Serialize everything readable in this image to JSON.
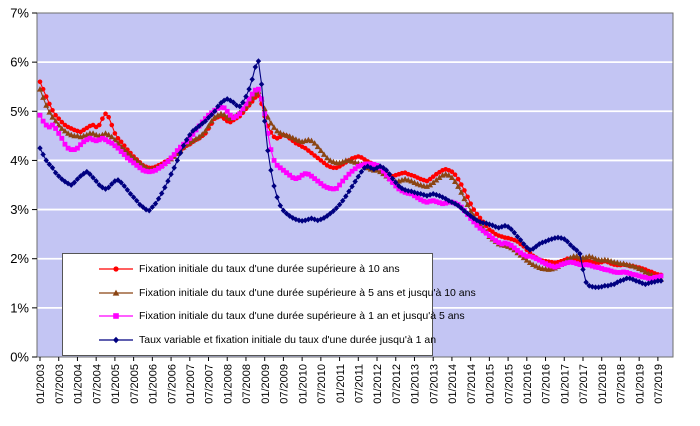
{
  "page": {
    "background": "#FFFFFF"
  },
  "chart_data": {
    "type": "line",
    "title": "",
    "xlabel": "",
    "ylabel": "",
    "ylim": [
      0,
      7
    ],
    "y_tick_labels": [
      "0%",
      "1%",
      "2%",
      "3%",
      "4%",
      "5%",
      "6%",
      "7%"
    ],
    "y_gridlines": [
      1,
      2,
      3,
      4,
      5,
      6
    ],
    "grid": "horizontal",
    "gridline_color": "#FFFFFF",
    "plot_bg": "#C3C5F3",
    "border_color": "#6E6E6E",
    "axis_text_color": "#000000",
    "legend_position": "bottom-left-overlay",
    "x_frequency": "monthly",
    "x_start_label": "01/2003",
    "x_tick_labels": [
      "01/2003",
      "07/2003",
      "01/2004",
      "07/2004",
      "01/2005",
      "07/2005",
      "01/2006",
      "07/2006",
      "01/2007",
      "07/2007",
      "01/2008",
      "07/2008",
      "01/2009",
      "07/2009",
      "01/2010",
      "07/2010",
      "01/2011",
      "07/2011",
      "01/2012",
      "07/2012",
      "01/2013",
      "07/2013",
      "01/2014",
      "07/2014",
      "01/2015",
      "07/2015",
      "01/2016",
      "07/2016",
      "01/2017",
      "07/2017",
      "01/2018",
      "07/2018",
      "01/2019",
      "07/2019"
    ],
    "series": [
      {
        "label": "Fixation initiale du taux d'une durée supérieure à 10 ans",
        "color": "#FF0000",
        "marker": "circle",
        "values": [
          5.6,
          5.45,
          5.3,
          5.15,
          5.02,
          4.92,
          4.85,
          4.78,
          4.72,
          4.68,
          4.65,
          4.62,
          4.6,
          4.58,
          4.62,
          4.66,
          4.7,
          4.72,
          4.68,
          4.72,
          4.85,
          4.95,
          4.88,
          4.72,
          4.55,
          4.45,
          4.38,
          4.3,
          4.22,
          4.15,
          4.08,
          4.02,
          3.96,
          3.9,
          3.87,
          3.85,
          3.85,
          3.87,
          3.9,
          3.93,
          3.97,
          4.0,
          4.05,
          4.1,
          4.15,
          4.2,
          4.25,
          4.3,
          4.33,
          4.38,
          4.42,
          4.45,
          4.5,
          4.55,
          4.65,
          4.75,
          4.85,
          4.88,
          4.9,
          4.85,
          4.8,
          4.78,
          4.82,
          4.86,
          4.9,
          4.97,
          5.05,
          5.12,
          5.2,
          5.28,
          5.32,
          5.15,
          4.9,
          4.7,
          4.57,
          4.48,
          4.45,
          4.48,
          4.52,
          4.5,
          4.45,
          4.4,
          4.35,
          4.32,
          4.28,
          4.25,
          4.2,
          4.15,
          4.1,
          4.05,
          4.0,
          3.95,
          3.9,
          3.87,
          3.85,
          3.85,
          3.88,
          3.92,
          3.96,
          4.0,
          4.04,
          4.06,
          4.08,
          4.06,
          4.02,
          3.98,
          3.95,
          3.92,
          3.9,
          3.85,
          3.8,
          3.75,
          3.71,
          3.68,
          3.7,
          3.72,
          3.74,
          3.75,
          3.72,
          3.7,
          3.68,
          3.65,
          3.62,
          3.6,
          3.58,
          3.62,
          3.67,
          3.72,
          3.76,
          3.8,
          3.82,
          3.8,
          3.77,
          3.71,
          3.62,
          3.51,
          3.39,
          3.26,
          3.12,
          3.0,
          2.91,
          2.83,
          2.75,
          2.67,
          2.59,
          2.55,
          2.5,
          2.47,
          2.45,
          2.43,
          2.42,
          2.4,
          2.38,
          2.35,
          2.3,
          2.25,
          2.18,
          2.12,
          2.06,
          2.02,
          1.98,
          1.96,
          1.95,
          1.94,
          1.93,
          1.92,
          1.93,
          1.95,
          1.97,
          2.0,
          2.0,
          1.98,
          1.97,
          1.95,
          1.95,
          1.97,
          1.95,
          1.93,
          1.92,
          1.92,
          1.93,
          1.95,
          1.93,
          1.9,
          1.88,
          1.87,
          1.87,
          1.88,
          1.87,
          1.85,
          1.85,
          1.83,
          1.82,
          1.8,
          1.78,
          1.75,
          1.73,
          1.7,
          1.68,
          1.67
        ]
      },
      {
        "label": "Fixation initiale du taux d'une durée supérieure à 5 ans et  jusqu'à 10 ans",
        "color": "#8B4513",
        "marker": "triangle",
        "values": [
          5.45,
          5.28,
          5.12,
          4.98,
          4.88,
          4.8,
          4.72,
          4.65,
          4.6,
          4.55,
          4.52,
          4.5,
          4.5,
          4.48,
          4.5,
          4.52,
          4.55,
          4.55,
          4.52,
          4.5,
          4.52,
          4.55,
          4.52,
          4.48,
          4.42,
          4.35,
          4.28,
          4.22,
          4.15,
          4.1,
          4.05,
          4.0,
          3.95,
          3.9,
          3.85,
          3.82,
          3.82,
          3.84,
          3.87,
          3.9,
          3.94,
          3.98,
          4.03,
          4.08,
          4.14,
          4.2,
          4.27,
          4.33,
          4.36,
          4.4,
          4.44,
          4.48,
          4.53,
          4.6,
          4.7,
          4.8,
          4.88,
          4.92,
          4.95,
          4.93,
          4.88,
          4.85,
          4.88,
          4.92,
          4.97,
          5.03,
          5.1,
          5.18,
          5.27,
          5.35,
          5.4,
          5.25,
          5.05,
          4.88,
          4.76,
          4.67,
          4.6,
          4.56,
          4.53,
          4.51,
          4.49,
          4.46,
          4.43,
          4.4,
          4.38,
          4.4,
          4.42,
          4.4,
          4.35,
          4.28,
          4.2,
          4.12,
          4.05,
          4.0,
          3.97,
          3.95,
          3.95,
          3.97,
          4.0,
          4.0,
          3.98,
          3.96,
          3.94,
          3.92,
          3.88,
          3.85,
          3.82,
          3.8,
          3.8,
          3.77,
          3.73,
          3.68,
          3.63,
          3.58,
          3.57,
          3.58,
          3.6,
          3.62,
          3.6,
          3.58,
          3.55,
          3.52,
          3.5,
          3.48,
          3.47,
          3.5,
          3.55,
          3.6,
          3.65,
          3.7,
          3.72,
          3.7,
          3.65,
          3.57,
          3.47,
          3.35,
          3.22,
          3.1,
          2.97,
          2.87,
          2.78,
          2.7,
          2.62,
          2.55,
          2.45,
          2.4,
          2.35,
          2.3,
          2.28,
          2.27,
          2.25,
          2.22,
          2.18,
          2.12,
          2.07,
          2.02,
          1.97,
          1.92,
          1.88,
          1.85,
          1.82,
          1.8,
          1.79,
          1.78,
          1.79,
          1.81,
          1.84,
          1.88,
          1.92,
          1.97,
          2.02,
          2.05,
          2.05,
          2.03,
          2.02,
          2.03,
          2.05,
          2.03,
          2.0,
          1.98,
          1.97,
          1.98,
          1.97,
          1.95,
          1.93,
          1.92,
          1.9,
          1.9,
          1.88,
          1.87,
          1.85,
          1.83,
          1.8,
          1.77,
          1.73,
          1.7,
          1.67,
          1.63,
          1.6,
          1.58
        ]
      },
      {
        "label": "Fixation initiale du taux d'une durée supérieure à 1 an et  jusqu'à 5 ans",
        "color": "#FF00FF",
        "marker": "square",
        "values": [
          4.92,
          4.8,
          4.72,
          4.68,
          4.72,
          4.65,
          4.55,
          4.45,
          4.33,
          4.25,
          4.22,
          4.22,
          4.25,
          4.32,
          4.38,
          4.42,
          4.45,
          4.42,
          4.4,
          4.42,
          4.45,
          4.42,
          4.38,
          4.35,
          4.3,
          4.25,
          4.18,
          4.12,
          4.05,
          4.0,
          3.95,
          3.9,
          3.85,
          3.8,
          3.78,
          3.77,
          3.78,
          3.8,
          3.84,
          3.88,
          3.93,
          3.98,
          4.05,
          4.12,
          4.2,
          4.27,
          4.33,
          4.38,
          4.45,
          4.53,
          4.62,
          4.7,
          4.78,
          4.85,
          4.92,
          4.97,
          5.02,
          5.06,
          5.08,
          5.07,
          5.0,
          4.92,
          4.87,
          4.9,
          4.95,
          5.05,
          5.15,
          5.25,
          5.35,
          5.43,
          5.45,
          5.25,
          4.95,
          4.55,
          4.22,
          4.0,
          3.9,
          3.85,
          3.8,
          3.75,
          3.7,
          3.65,
          3.63,
          3.65,
          3.7,
          3.73,
          3.72,
          3.68,
          3.63,
          3.58,
          3.53,
          3.48,
          3.45,
          3.43,
          3.42,
          3.43,
          3.5,
          3.58,
          3.65,
          3.72,
          3.78,
          3.83,
          3.88,
          3.9,
          3.92,
          3.93,
          3.93,
          3.92,
          3.9,
          3.85,
          3.78,
          3.7,
          3.62,
          3.55,
          3.48,
          3.42,
          3.38,
          3.35,
          3.33,
          3.32,
          3.28,
          3.24,
          3.2,
          3.17,
          3.15,
          3.17,
          3.18,
          3.16,
          3.14,
          3.12,
          3.13,
          3.15,
          3.15,
          3.13,
          3.1,
          3.05,
          2.98,
          2.9,
          2.82,
          2.75,
          2.68,
          2.62,
          2.57,
          2.52,
          2.47,
          2.42,
          2.37,
          2.33,
          2.3,
          2.32,
          2.3,
          2.27,
          2.22,
          2.17,
          2.12,
          2.08,
          2.05,
          2.05,
          2.03,
          2.0,
          1.97,
          1.93,
          1.9,
          1.87,
          1.85,
          1.83,
          1.85,
          1.88,
          1.9,
          1.92,
          1.93,
          1.92,
          1.9,
          1.88,
          1.87,
          1.88,
          1.87,
          1.85,
          1.83,
          1.82,
          1.8,
          1.78,
          1.77,
          1.75,
          1.73,
          1.72,
          1.72,
          1.73,
          1.72,
          1.7,
          1.68,
          1.67,
          1.65,
          1.63,
          1.62,
          1.6,
          1.6,
          1.62,
          1.63,
          1.65
        ]
      },
      {
        "label": "Taux variable et fixation initiale du taux d'une durée jusqu'à 1 an",
        "color": "#000080",
        "marker": "diamond",
        "values": [
          4.25,
          4.12,
          4.0,
          3.92,
          3.85,
          3.75,
          3.68,
          3.62,
          3.57,
          3.53,
          3.5,
          3.55,
          3.62,
          3.68,
          3.73,
          3.77,
          3.72,
          3.65,
          3.58,
          3.5,
          3.45,
          3.42,
          3.45,
          3.52,
          3.58,
          3.6,
          3.55,
          3.48,
          3.4,
          3.32,
          3.25,
          3.18,
          3.1,
          3.05,
          3.0,
          2.98,
          3.05,
          3.12,
          3.22,
          3.33,
          3.45,
          3.58,
          3.72,
          3.85,
          4.0,
          4.15,
          4.3,
          4.42,
          4.52,
          4.6,
          4.65,
          4.7,
          4.75,
          4.8,
          4.87,
          4.93,
          5.0,
          5.1,
          5.17,
          5.22,
          5.25,
          5.22,
          5.18,
          5.12,
          5.1,
          5.18,
          5.3,
          5.45,
          5.65,
          5.9,
          6.02,
          5.55,
          4.8,
          4.2,
          3.8,
          3.48,
          3.25,
          3.08,
          2.98,
          2.92,
          2.87,
          2.83,
          2.8,
          2.78,
          2.77,
          2.78,
          2.8,
          2.82,
          2.8,
          2.78,
          2.8,
          2.83,
          2.87,
          2.92,
          2.97,
          3.03,
          3.1,
          3.18,
          3.27,
          3.37,
          3.47,
          3.57,
          3.67,
          3.77,
          3.85,
          3.88,
          3.85,
          3.82,
          3.85,
          3.88,
          3.85,
          3.8,
          3.72,
          3.63,
          3.55,
          3.48,
          3.43,
          3.4,
          3.38,
          3.37,
          3.35,
          3.33,
          3.32,
          3.3,
          3.28,
          3.3,
          3.32,
          3.3,
          3.28,
          3.25,
          3.22,
          3.18,
          3.15,
          3.12,
          3.08,
          3.03,
          2.97,
          2.92,
          2.87,
          2.82,
          2.78,
          2.75,
          2.73,
          2.72,
          2.7,
          2.68,
          2.65,
          2.63,
          2.65,
          2.67,
          2.65,
          2.6,
          2.53,
          2.45,
          2.38,
          2.3,
          2.23,
          2.18,
          2.2,
          2.25,
          2.3,
          2.33,
          2.35,
          2.38,
          2.4,
          2.42,
          2.43,
          2.42,
          2.4,
          2.35,
          2.28,
          2.22,
          2.17,
          2.1,
          1.78,
          1.52,
          1.45,
          1.43,
          1.42,
          1.42,
          1.43,
          1.45,
          1.45,
          1.47,
          1.48,
          1.52,
          1.55,
          1.57,
          1.6,
          1.6,
          1.58,
          1.55,
          1.53,
          1.5,
          1.48,
          1.5,
          1.52,
          1.53,
          1.55,
          1.55
        ]
      }
    ]
  }
}
